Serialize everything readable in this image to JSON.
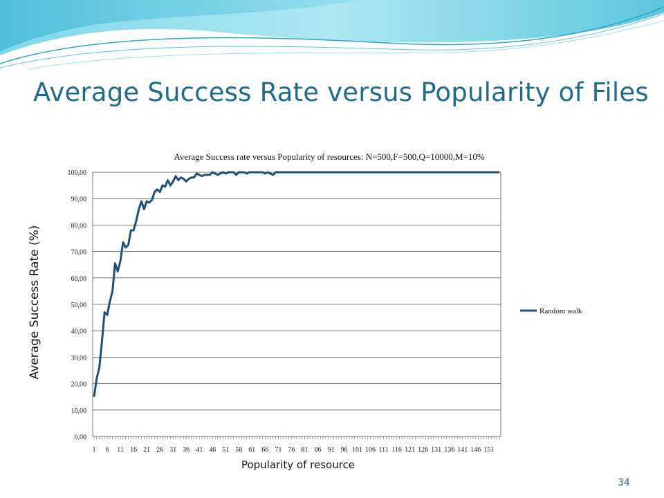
{
  "slide": {
    "title": "Average Success Rate versus Popularity of Files",
    "page_number": "34",
    "accent_color": "#1f6b88"
  },
  "chart_data": {
    "type": "line",
    "title": "Average Success rate versus Popularity of resources: N=500,F=500,Q=10000,M=10%",
    "xlabel": "Popularity of resource",
    "ylabel": "Average Success Rate (%)",
    "ylim": [
      0,
      100
    ],
    "y_ticks": [
      "0,00",
      "10,00",
      "20,00",
      "30,00",
      "40,00",
      "50,00",
      "60,00",
      "70,00",
      "80,00",
      "90,00",
      "100,00"
    ],
    "x_tick_labels": [
      "1",
      "6",
      "11",
      "16",
      "21",
      "26",
      "31",
      "36",
      "41",
      "46",
      "51",
      "56",
      "61",
      "66",
      "71",
      "76",
      "81",
      "86",
      "91",
      "96",
      "101",
      "106",
      "111",
      "116",
      "121",
      "126",
      "131",
      "136",
      "141",
      "146",
      "151"
    ],
    "x_range": [
      1,
      155
    ],
    "grid": "horizontal",
    "legend_position": "right",
    "series": [
      {
        "name": "Random walk",
        "color": "#1f4e79",
        "x": [
          1,
          2,
          3,
          4,
          5,
          6,
          7,
          8,
          9,
          10,
          11,
          12,
          13,
          14,
          15,
          16,
          17,
          18,
          19,
          20,
          21,
          22,
          23,
          24,
          25,
          26,
          27,
          28,
          29,
          30,
          31,
          32,
          33,
          34,
          35,
          36,
          37,
          38,
          39,
          40,
          41,
          42,
          43,
          44,
          45,
          46,
          47,
          48,
          49,
          50,
          51,
          52,
          53,
          54,
          55,
          56,
          57,
          58,
          59,
          60,
          61,
          62,
          63,
          64,
          65,
          66,
          67,
          68,
          69,
          70,
          155
        ],
        "values": [
          15,
          22,
          26,
          36,
          47,
          46,
          51,
          55,
          65.5,
          62.5,
          66.5,
          73.5,
          71.5,
          72.5,
          78,
          78,
          81.5,
          86,
          89,
          86,
          89,
          88.5,
          89.5,
          92.5,
          93.5,
          92.5,
          95,
          94.5,
          97,
          95,
          96.5,
          98.5,
          97,
          98,
          97.5,
          96.5,
          97.5,
          98,
          98,
          99.5,
          99,
          98.5,
          99,
          99,
          99,
          100,
          99.5,
          99,
          99.5,
          100,
          99.5,
          100,
          100,
          100,
          99,
          100,
          100,
          100,
          99.5,
          100,
          100,
          100,
          100,
          100,
          100,
          99.5,
          100,
          99.5,
          99,
          100,
          100
        ]
      }
    ]
  }
}
